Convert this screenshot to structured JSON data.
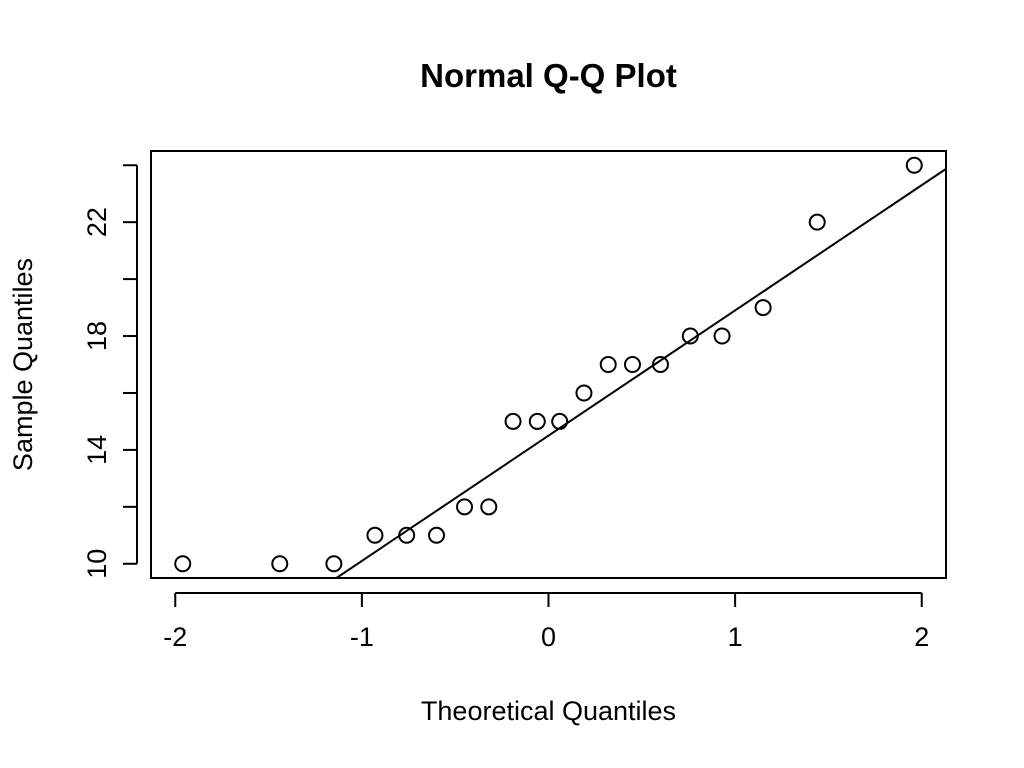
{
  "chart_data": {
    "type": "scatter",
    "title": "Normal Q-Q Plot",
    "xlabel": "Theoretical Quantiles",
    "ylabel": "Sample Quantiles",
    "xlim": [
      -2.13,
      2.13
    ],
    "ylim": [
      9.5,
      24.5
    ],
    "x_ticks": [
      -2,
      -1,
      0,
      1,
      2
    ],
    "x_tick_labels": [
      "-2",
      "-1",
      "0",
      "1",
      "2"
    ],
    "y_ticks": [
      10,
      12,
      14,
      16,
      18,
      20,
      22,
      24
    ],
    "y_tick_labels": [
      "10",
      "",
      "14",
      "",
      "18",
      "",
      "22",
      ""
    ],
    "series": [
      {
        "x": [
          -1.96,
          -1.44,
          -1.15,
          -0.93,
          -0.76,
          -0.6,
          -0.45,
          -0.32,
          -0.19,
          -0.06,
          0.06,
          0.19,
          0.32,
          0.45,
          0.6,
          0.76,
          0.93,
          1.15,
          1.44,
          1.96
        ],
        "y": [
          10,
          10,
          10,
          11,
          11,
          11,
          12,
          12,
          15,
          15,
          15,
          16,
          17,
          17,
          17,
          18,
          18,
          19,
          22,
          24
        ]
      }
    ],
    "reference_line": {
      "intercept": 14.5,
      "slope": 4.4
    },
    "grid": false,
    "legend": "none"
  }
}
